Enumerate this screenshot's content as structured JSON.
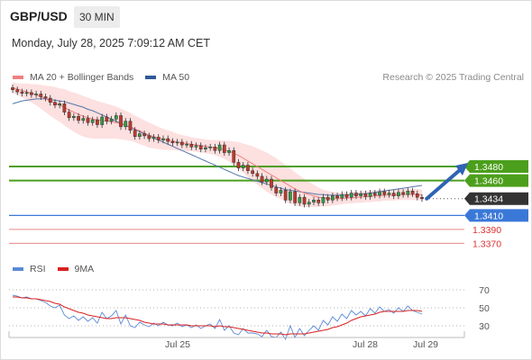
{
  "header": {
    "symbol": "GBP/USD",
    "timeframe": "30 MIN",
    "datetime": "Monday, July 28, 2025 7:09:12 AM CET"
  },
  "legend": {
    "ma20_label": "MA 20 + Bollinger Bands",
    "ma50_label": "MA 50",
    "credit": "Research © 2025 Trading Central"
  },
  "rsi_legend": {
    "rsi_label": "RSI",
    "ma9_label": "9MA"
  },
  "colors": {
    "ma20": "#f08080",
    "bollinger_fill": "#fde0e0",
    "ma50": "#5577aa",
    "resistance": "#4c9f1c",
    "support_blue": "#3a78d8",
    "support_red": "#e88a8a",
    "last_price": "#333333",
    "arrow": "#2f63b4",
    "rsi": "#5b8ad6",
    "rsi_ma": "#d92020",
    "candle_up": "#2e9e45",
    "candle_down": "#c0392b"
  },
  "chart_data": [
    {
      "type": "candlestick",
      "name": "price",
      "ylim": [
        1.3355,
        1.36
      ],
      "x_ticks": [
        "Jul 25",
        "Jul 28",
        "Jul 29"
      ],
      "closes": [
        1.359,
        1.3587,
        1.3585,
        1.3586,
        1.3583,
        1.3584,
        1.358,
        1.3578,
        1.3572,
        1.3568,
        1.357,
        1.3558,
        1.355,
        1.3552,
        1.3546,
        1.3549,
        1.3543,
        1.3547,
        1.354,
        1.3551,
        1.3545,
        1.3548,
        1.3553,
        1.3537,
        1.3545,
        1.3532,
        1.3523,
        1.3527,
        1.3524,
        1.352,
        1.3522,
        1.3518,
        1.352,
        1.3516,
        1.3514,
        1.3515,
        1.3511,
        1.3512,
        1.3508,
        1.351,
        1.3505,
        1.3507,
        1.3508,
        1.3503,
        1.3511,
        1.35,
        1.3503,
        1.3486,
        1.3478,
        1.3482,
        1.3474,
        1.347,
        1.3466,
        1.3458,
        1.3462,
        1.345,
        1.3442,
        1.3446,
        1.3432,
        1.3444,
        1.3428,
        1.3436,
        1.3426,
        1.3429,
        1.3432,
        1.3428,
        1.3436,
        1.3432,
        1.3438,
        1.3435,
        1.344,
        1.3436,
        1.3442,
        1.3438,
        1.3441,
        1.3437,
        1.3442,
        1.3439,
        1.3444,
        1.344,
        1.3442,
        1.3438,
        1.3443,
        1.344,
        1.3445,
        1.3441,
        1.3436,
        1.3434
      ],
      "ma20": [
        1.3593,
        1.3591,
        1.3589,
        1.3587,
        1.3585,
        1.3583,
        1.358,
        1.3577,
        1.3574,
        1.3571,
        1.3568,
        1.3565,
        1.3561,
        1.3558,
        1.3555,
        1.3552,
        1.355,
        1.3548,
        1.3547,
        1.3546,
        1.3545,
        1.3544,
        1.3543,
        1.3541,
        1.3539,
        1.3537,
        1.3534,
        1.3531,
        1.3528,
        1.3525,
        1.3523,
        1.3521,
        1.3519,
        1.3518,
        1.3517,
        1.3515,
        1.3514,
        1.3513,
        1.3512,
        1.3511,
        1.351,
        1.3509,
        1.3508,
        1.3507,
        1.3506,
        1.3504,
        1.3502,
        1.3499,
        1.3496,
        1.3492,
        1.3488,
        1.3484,
        1.348,
        1.3476,
        1.3472,
        1.3468,
        1.3464,
        1.346,
        1.3456,
        1.3452,
        1.3448,
        1.3445,
        1.3442,
        1.344,
        1.3438,
        1.3436,
        1.3435,
        1.3434,
        1.3434,
        1.3434,
        1.3434,
        1.3435,
        1.3435,
        1.3436,
        1.3436,
        1.3437,
        1.3437,
        1.3438,
        1.3438,
        1.3439,
        1.3439,
        1.3439,
        1.344,
        1.344,
        1.344,
        1.344,
        1.344,
        1.3439
      ],
      "band_width": [
        0.0008,
        0.0008,
        0.001,
        0.0012,
        0.0013,
        0.0015,
        0.0017,
        0.0019,
        0.0021,
        0.0023,
        0.0024,
        0.0026,
        0.0027,
        0.0028,
        0.0029,
        0.0029,
        0.0029,
        0.0028,
        0.0027,
        0.0026,
        0.0025,
        0.0024,
        0.0023,
        0.0022,
        0.0021,
        0.002,
        0.0019,
        0.0019,
        0.0018,
        0.0018,
        0.0017,
        0.0016,
        0.0015,
        0.0014,
        0.0013,
        0.0012,
        0.0011,
        0.0011,
        0.001,
        0.001,
        0.001,
        0.001,
        0.001,
        0.0011,
        0.0012,
        0.0013,
        0.0015,
        0.0017,
        0.0019,
        0.0021,
        0.0023,
        0.0025,
        0.0026,
        0.0027,
        0.0028,
        0.0028,
        0.0028,
        0.0027,
        0.0026,
        0.0025,
        0.0024,
        0.0022,
        0.002,
        0.0018,
        0.0016,
        0.0014,
        0.0012,
        0.0011,
        0.001,
        0.0009,
        0.0008,
        0.0008,
        0.0008,
        0.0008,
        0.0008,
        0.0008,
        0.0008,
        0.0008,
        0.0008,
        0.0008,
        0.0008,
        0.0008,
        0.0008,
        0.0008,
        0.0008,
        0.0008,
        0.0008,
        0.0008
      ],
      "ma50": [
        1.357,
        1.3572,
        1.3574,
        1.3575,
        1.3576,
        1.3577,
        1.3577,
        1.3577,
        1.3576,
        1.3575,
        1.3574,
        1.3573,
        1.3571,
        1.3569,
        1.3567,
        1.3565,
        1.3562,
        1.356,
        1.3557,
        1.3554,
        1.3551,
        1.3548,
        1.3545,
        1.3542,
        1.3539,
        1.3536,
        1.3533,
        1.353,
        1.3527,
        1.3524,
        1.3521,
        1.3518,
        1.3515,
        1.3512,
        1.3509,
        1.3506,
        1.3503,
        1.35,
        1.3497,
        1.3494,
        1.3491,
        1.3488,
        1.3485,
        1.3482,
        1.3479,
        1.3476,
        1.3473,
        1.347,
        1.3467,
        1.3465,
        1.3463,
        1.3461,
        1.3459,
        1.3457,
        1.3455,
        1.3453,
        1.3451,
        1.3449,
        1.3447,
        1.3446,
        1.3445,
        1.3444,
        1.3443,
        1.3442,
        1.3441,
        1.344,
        1.344,
        1.3439,
        1.3439,
        1.3439,
        1.3439,
        1.3439,
        1.344,
        1.344,
        1.3441,
        1.3441,
        1.3442,
        1.3443,
        1.3444,
        1.3445,
        1.3446,
        1.3447,
        1.3448,
        1.3449,
        1.345,
        1.3451,
        1.3452,
        1.3453
      ],
      "levels": [
        {
          "value": 1.348,
          "label": "1.3480",
          "kind": "resistance"
        },
        {
          "value": 1.346,
          "label": "1.3460",
          "kind": "resistance"
        },
        {
          "value": 1.3434,
          "label": "1.3434",
          "kind": "last"
        },
        {
          "value": 1.341,
          "label": "1.3410",
          "kind": "support"
        },
        {
          "value": 1.339,
          "label": "1.3390",
          "kind": "support-weak"
        },
        {
          "value": 1.337,
          "label": "1.3370",
          "kind": "support-weak"
        }
      ],
      "arrow": {
        "from": [
          88,
          1.3434
        ],
        "to": [
          96,
          1.348
        ],
        "direction": "up"
      }
    },
    {
      "type": "line",
      "name": "rsi",
      "ylim": [
        20,
        80
      ],
      "y_ticks": [
        70,
        50,
        30
      ],
      "series": [
        {
          "name": "RSI",
          "values": [
            64,
            63,
            61,
            62,
            60,
            60,
            58,
            56,
            52,
            50,
            53,
            42,
            38,
            41,
            36,
            40,
            35,
            39,
            33,
            45,
            38,
            41,
            47,
            32,
            42,
            30,
            28,
            34,
            31,
            29,
            33,
            30,
            34,
            31,
            30,
            33,
            29,
            31,
            28,
            31,
            27,
            30,
            32,
            27,
            37,
            25,
            30,
            22,
            20,
            27,
            22,
            22,
            21,
            18,
            25,
            18,
            17,
            23,
            15,
            30,
            17,
            27,
            19,
            25,
            30,
            25,
            36,
            31,
            40,
            35,
            43,
            38,
            47,
            42,
            46,
            41,
            49,
            44,
            51,
            46,
            48,
            44,
            50,
            46,
            52,
            47,
            45,
            43
          ]
        },
        {
          "name": "9MA",
          "values": [
            62,
            62,
            61,
            61,
            60,
            60,
            59,
            58,
            57,
            55,
            54,
            51,
            49,
            47,
            45,
            44,
            42,
            41,
            40,
            39,
            38,
            38,
            39,
            39,
            39,
            38,
            37,
            36,
            34,
            33,
            32,
            32,
            32,
            31,
            31,
            31,
            31,
            31,
            30,
            30,
            30,
            30,
            30,
            29,
            30,
            29,
            29,
            28,
            27,
            26,
            25,
            24,
            23,
            22,
            22,
            21,
            21,
            21,
            20,
            21,
            21,
            21,
            21,
            22,
            23,
            24,
            25,
            26,
            28,
            29,
            31,
            33,
            36,
            38,
            40,
            41,
            42,
            43,
            45,
            46,
            46,
            46,
            46,
            46,
            47,
            47,
            47,
            46
          ]
        }
      ]
    }
  ]
}
